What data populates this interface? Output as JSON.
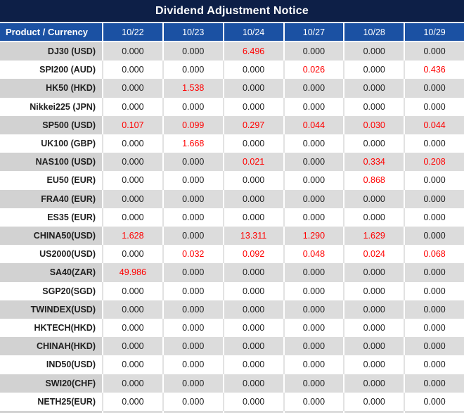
{
  "title": "Dividend Adjustment Notice",
  "colors": {
    "title_bg": "#0D1F47",
    "header_bg": "#1B51A3",
    "stripe_label_bg": "#D2D2D2",
    "stripe_bg": "#DCDCDC",
    "text_color": "#1E1E1E",
    "negative_red": "#FF0000",
    "grid_line_white": "#FFFFFF"
  },
  "table": {
    "header": {
      "product": "Product / Currency",
      "dates": [
        "10/22",
        "10/23",
        "10/24",
        "10/27",
        "10/28",
        "10/29"
      ]
    },
    "rows": [
      {
        "product": "DJ30 (USD)",
        "values": [
          "0.000",
          "0.000",
          "6.496",
          "0.000",
          "0.000",
          "0.000"
        ],
        "red": [
          false,
          false,
          true,
          false,
          false,
          false
        ]
      },
      {
        "product": "SPI200 (AUD)",
        "values": [
          "0.000",
          "0.000",
          "0.000",
          "0.026",
          "0.000",
          "0.436"
        ],
        "red": [
          false,
          false,
          false,
          true,
          false,
          true
        ]
      },
      {
        "product": "HK50 (HKD)",
        "values": [
          "0.000",
          "1.538",
          "0.000",
          "0.000",
          "0.000",
          "0.000"
        ],
        "red": [
          false,
          true,
          false,
          false,
          false,
          false
        ]
      },
      {
        "product": "Nikkei225 (JPN)",
        "values": [
          "0.000",
          "0.000",
          "0.000",
          "0.000",
          "0.000",
          "0.000"
        ],
        "red": [
          false,
          false,
          false,
          false,
          false,
          false
        ]
      },
      {
        "product": "SP500 (USD)",
        "values": [
          "0.107",
          "0.099",
          "0.297",
          "0.044",
          "0.030",
          "0.044"
        ],
        "red": [
          true,
          true,
          true,
          true,
          true,
          true
        ]
      },
      {
        "product": "UK100 (GBP)",
        "values": [
          "0.000",
          "1.668",
          "0.000",
          "0.000",
          "0.000",
          "0.000"
        ],
        "red": [
          false,
          true,
          false,
          false,
          false,
          false
        ]
      },
      {
        "product": "NAS100 (USD)",
        "values": [
          "0.000",
          "0.000",
          "0.021",
          "0.000",
          "0.334",
          "0.208"
        ],
        "red": [
          false,
          false,
          true,
          false,
          true,
          true
        ]
      },
      {
        "product": "EU50 (EUR)",
        "values": [
          "0.000",
          "0.000",
          "0.000",
          "0.000",
          "0.868",
          "0.000"
        ],
        "red": [
          false,
          false,
          false,
          false,
          true,
          false
        ]
      },
      {
        "product": "FRA40 (EUR)",
        "values": [
          "0.000",
          "0.000",
          "0.000",
          "0.000",
          "0.000",
          "0.000"
        ],
        "red": [
          false,
          false,
          false,
          false,
          false,
          false
        ]
      },
      {
        "product": "ES35 (EUR)",
        "values": [
          "0.000",
          "0.000",
          "0.000",
          "0.000",
          "0.000",
          "0.000"
        ],
        "red": [
          false,
          false,
          false,
          false,
          false,
          false
        ]
      },
      {
        "product": "CHINA50(USD)",
        "values": [
          "1.628",
          "0.000",
          "13.311",
          "1.290",
          "1.629",
          "0.000"
        ],
        "red": [
          true,
          false,
          true,
          true,
          true,
          false
        ]
      },
      {
        "product": "US2000(USD)",
        "values": [
          "0.000",
          "0.032",
          "0.092",
          "0.048",
          "0.024",
          "0.068"
        ],
        "red": [
          false,
          true,
          true,
          true,
          true,
          true
        ]
      },
      {
        "product": "SA40(ZAR)",
        "values": [
          "49.986",
          "0.000",
          "0.000",
          "0.000",
          "0.000",
          "0.000"
        ],
        "red": [
          true,
          false,
          false,
          false,
          false,
          false
        ]
      },
      {
        "product": "SGP20(SGD)",
        "values": [
          "0.000",
          "0.000",
          "0.000",
          "0.000",
          "0.000",
          "0.000"
        ],
        "red": [
          false,
          false,
          false,
          false,
          false,
          false
        ]
      },
      {
        "product": "TWINDEX(USD)",
        "values": [
          "0.000",
          "0.000",
          "0.000",
          "0.000",
          "0.000",
          "0.000"
        ],
        "red": [
          false,
          false,
          false,
          false,
          false,
          false
        ]
      },
      {
        "product": "HKTECH(HKD)",
        "values": [
          "0.000",
          "0.000",
          "0.000",
          "0.000",
          "0.000",
          "0.000"
        ],
        "red": [
          false,
          false,
          false,
          false,
          false,
          false
        ]
      },
      {
        "product": "CHINAH(HKD)",
        "values": [
          "0.000",
          "0.000",
          "0.000",
          "0.000",
          "0.000",
          "0.000"
        ],
        "red": [
          false,
          false,
          false,
          false,
          false,
          false
        ]
      },
      {
        "product": "IND50(USD)",
        "values": [
          "0.000",
          "0.000",
          "0.000",
          "0.000",
          "0.000",
          "0.000"
        ],
        "red": [
          false,
          false,
          false,
          false,
          false,
          false
        ]
      },
      {
        "product": "SWI20(CHF)",
        "values": [
          "0.000",
          "0.000",
          "0.000",
          "0.000",
          "0.000",
          "0.000"
        ],
        "red": [
          false,
          false,
          false,
          false,
          false,
          false
        ]
      },
      {
        "product": "NETH25(EUR)",
        "values": [
          "0.000",
          "0.000",
          "0.000",
          "0.000",
          "0.000",
          "0.000"
        ],
        "red": [
          false,
          false,
          false,
          false,
          false,
          false
        ]
      }
    ]
  }
}
